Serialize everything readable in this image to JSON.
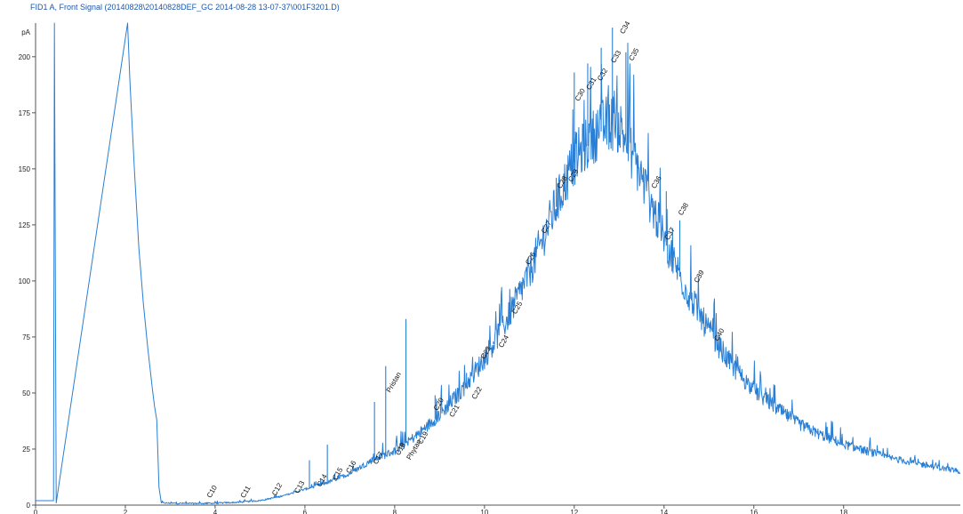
{
  "title": "FID1 A, Front Signal (20140828\\20140828DEF_GC 2014-08-28 13-07-37\\001F3201.D)",
  "chart_data": {
    "type": "line",
    "title": "FID1 A, Front Signal (20140828\\20140828DEF_GC 2014-08-28 13-07-37\\001F3201.D)",
    "xlabel": "",
    "ylabel": "pA",
    "xlim": [
      0,
      20.6
    ],
    "ylim": [
      0,
      215
    ],
    "x_ticks": [
      0,
      2,
      4,
      6,
      8,
      10,
      12,
      14,
      16,
      18
    ],
    "x_tick_labels": [
      "0",
      "2",
      "4",
      "6",
      "8",
      "10",
      "12",
      "14",
      "16",
      "18"
    ],
    "y_ticks": [
      0,
      25,
      50,
      75,
      100,
      125,
      150,
      175,
      200
    ],
    "y_tick_labels": [
      "0",
      "25",
      "50",
      "75",
      "100",
      "125",
      "150",
      "175",
      "200"
    ],
    "grid": false,
    "line_color": "#2a7fd4",
    "series": [
      {
        "x": [
          0.0,
          0.4,
          0.42,
          0.46,
          2.05,
          2.1,
          2.2,
          2.3,
          2.4,
          2.5,
          2.6,
          2.65,
          2.7,
          2.75,
          2.8,
          3.0,
          3.5,
          4.0,
          4.5,
          5.0,
          5.5,
          6.0,
          6.5,
          7.0,
          7.5,
          8.0,
          8.5,
          9.0,
          9.5,
          10.0,
          10.5,
          11.0,
          11.5,
          12.0,
          12.5,
          12.8,
          13.0,
          13.2,
          13.5,
          14.0,
          14.5,
          15.0,
          15.5,
          16.0,
          16.5,
          17.0,
          17.5,
          18.0,
          18.5,
          19.0,
          19.5,
          20.0,
          20.6
        ],
        "y": [
          2,
          2,
          215,
          1,
          215,
          190,
          150,
          115,
          90,
          70,
          52,
          44,
          38,
          8,
          1,
          0.8,
          0.7,
          0.8,
          1.2,
          2,
          4,
          7,
          10,
          14,
          20,
          24,
          31,
          40,
          51,
          65,
          82,
          103,
          128,
          153,
          165,
          170,
          168,
          160,
          145,
          118,
          95,
          77,
          62,
          51,
          43,
          36,
          31,
          27,
          24,
          21,
          19,
          17,
          15
        ]
      }
    ],
    "spikes": [
      {
        "x": 6.1,
        "y": 20
      },
      {
        "x": 6.5,
        "y": 27
      },
      {
        "x": 7.55,
        "y": 46
      },
      {
        "x": 7.8,
        "y": 62
      },
      {
        "x": 8.25,
        "y": 83
      },
      {
        "x": 8.9,
        "y": 49
      },
      {
        "x": 9.6,
        "y": 59
      },
      {
        "x": 10.2,
        "y": 73
      },
      {
        "x": 11.1,
        "y": 113
      },
      {
        "x": 11.6,
        "y": 146
      },
      {
        "x": 12.0,
        "y": 193
      },
      {
        "x": 12.3,
        "y": 197
      },
      {
        "x": 12.6,
        "y": 204
      },
      {
        "x": 12.85,
        "y": 213
      },
      {
        "x": 13.15,
        "y": 202
      },
      {
        "x": 14.05,
        "y": 140
      },
      {
        "x": 14.35,
        "y": 127
      },
      {
        "x": 14.8,
        "y": 82
      }
    ],
    "annotations": [
      {
        "text": "C10",
        "x": 3.9,
        "y": 3
      },
      {
        "text": "C11",
        "x": 4.65,
        "y": 3
      },
      {
        "text": "C12",
        "x": 5.35,
        "y": 4
      },
      {
        "text": "C13",
        "x": 5.85,
        "y": 5
      },
      {
        "text": "C14",
        "x": 6.35,
        "y": 8
      },
      {
        "text": "C15",
        "x": 6.7,
        "y": 11
      },
      {
        "text": "C16",
        "x": 7.0,
        "y": 14
      },
      {
        "text": "C17",
        "x": 7.6,
        "y": 18
      },
      {
        "text": "C18",
        "x": 8.1,
        "y": 22
      },
      {
        "text": "Pristan",
        "x": 7.9,
        "y": 50
      },
      {
        "text": "Phytan",
        "x": 8.35,
        "y": 20
      },
      {
        "text": "C19",
        "x": 8.6,
        "y": 27
      },
      {
        "text": "C20",
        "x": 8.95,
        "y": 42
      },
      {
        "text": "C21",
        "x": 9.3,
        "y": 39
      },
      {
        "text": "C22",
        "x": 9.8,
        "y": 47
      },
      {
        "text": "C23",
        "x": 10.0,
        "y": 65
      },
      {
        "text": "C24",
        "x": 10.4,
        "y": 70
      },
      {
        "text": "C25",
        "x": 10.7,
        "y": 85
      },
      {
        "text": "C26",
        "x": 11.0,
        "y": 107
      },
      {
        "text": "C27",
        "x": 11.35,
        "y": 121
      },
      {
        "text": "C28",
        "x": 11.7,
        "y": 141
      },
      {
        "text": "C29",
        "x": 11.95,
        "y": 144
      },
      {
        "text": "C30",
        "x": 12.1,
        "y": 180
      },
      {
        "text": "C31",
        "x": 12.35,
        "y": 185
      },
      {
        "text": "C32",
        "x": 12.6,
        "y": 189
      },
      {
        "text": "C33",
        "x": 12.9,
        "y": 197
      },
      {
        "text": "C34",
        "x": 13.1,
        "y": 210
      },
      {
        "text": "C35",
        "x": 13.3,
        "y": 198
      },
      {
        "text": "C36",
        "x": 13.8,
        "y": 141
      },
      {
        "text": "C37",
        "x": 14.1,
        "y": 118
      },
      {
        "text": "C38",
        "x": 14.4,
        "y": 129
      },
      {
        "text": "C39",
        "x": 14.75,
        "y": 99
      },
      {
        "text": "C40",
        "x": 15.2,
        "y": 73
      }
    ]
  }
}
